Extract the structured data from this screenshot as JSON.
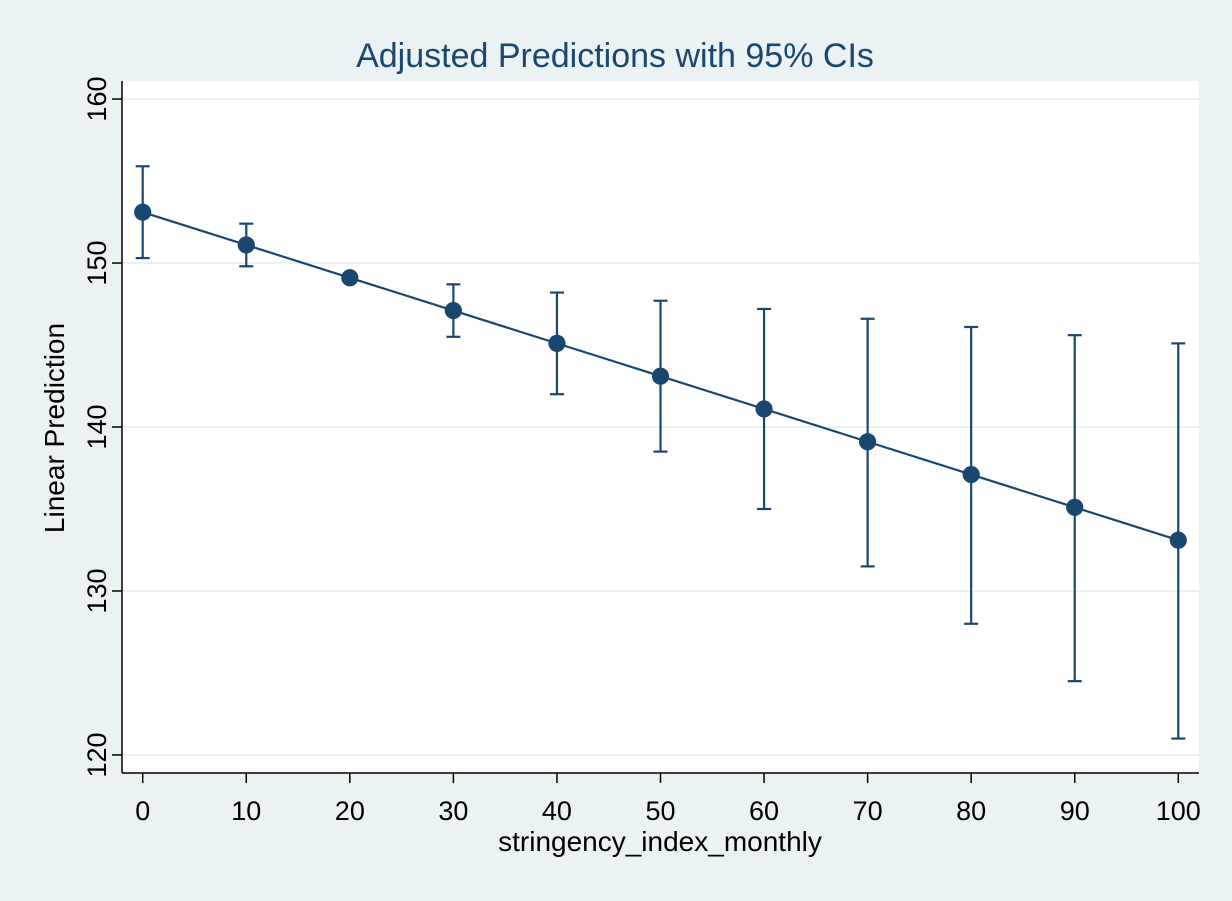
{
  "chart_data": {
    "type": "line",
    "title": "Adjusted Predictions with 95% CIs",
    "xlabel": "stringency_index_monthly",
    "ylabel": "Linear Prediction",
    "x": [
      0,
      10,
      20,
      30,
      40,
      50,
      60,
      70,
      80,
      90,
      100
    ],
    "series": [
      {
        "values": [
          153.1,
          151.1,
          149.1,
          147.1,
          145.1,
          143.1,
          141.1,
          139.1,
          137.1,
          135.1,
          133.1
        ],
        "ci_lower": [
          150.3,
          149.8,
          149.1,
          145.5,
          142.0,
          138.5,
          135.0,
          131.5,
          128.0,
          124.5,
          121.0
        ],
        "ci_upper": [
          155.9,
          152.4,
          149.1,
          148.7,
          148.2,
          147.7,
          147.2,
          146.6,
          146.1,
          145.6,
          145.1
        ]
      }
    ],
    "xticks": [
      "0",
      "10",
      "20",
      "30",
      "40",
      "50",
      "60",
      "70",
      "80",
      "90",
      "100"
    ],
    "yticks": [
      "120",
      "130",
      "140",
      "150",
      "160"
    ],
    "xlim": [
      -2,
      102
    ],
    "ylim": [
      118.9,
      161.1
    ],
    "grid": true,
    "colors": {
      "outer_background": "#eaf2f3",
      "plot_background": "#ffffff",
      "series": "#1a476f",
      "text": "#1a476f",
      "axis": "#000000",
      "grid": "#eaf2f3"
    }
  }
}
